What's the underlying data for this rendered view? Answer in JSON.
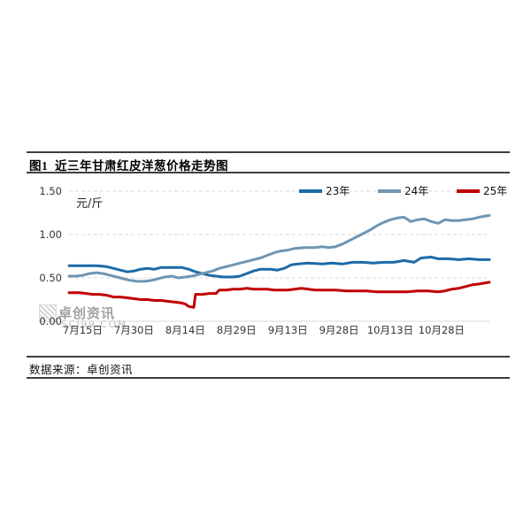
{
  "figure": {
    "title": "图1  近三年甘肃红皮洋葱价格走势图",
    "source_note": "数据来源：卓创资讯",
    "watermark": {
      "name": "卓创资讯",
      "domain": "SCI99.COM"
    }
  },
  "chart_data": {
    "type": "line",
    "title": "近三年甘肃红皮洋葱价格走势图",
    "xlabel": "",
    "ylabel": "元/斤",
    "ylim": [
      0,
      1.5
    ],
    "grid": "horizontal-dashed",
    "legend_position": "top-right",
    "x_day_domain": [
      0,
      123
    ],
    "y_ticks": [
      {
        "label": "0.00",
        "value": 0
      },
      {
        "label": "0.50",
        "value": 0.5
      },
      {
        "label": "1.00",
        "value": 1.0
      },
      {
        "label": "1.50",
        "value": 1.5
      }
    ],
    "x_ticks": [
      {
        "label": "7月15日",
        "day": 4
      },
      {
        "label": "7月30日",
        "day": 19
      },
      {
        "label": "8月14日",
        "day": 34
      },
      {
        "label": "8月29日",
        "day": 49
      },
      {
        "label": "9月13日",
        "day": 64
      },
      {
        "label": "9月28日",
        "day": 79
      },
      {
        "label": "10月13日",
        "day": 94
      },
      {
        "label": "10月28日",
        "day": 109
      }
    ],
    "series": [
      {
        "name": "23年",
        "color": "#1b6ba8",
        "points": [
          [
            0,
            0.64
          ],
          [
            4,
            0.64
          ],
          [
            8,
            0.64
          ],
          [
            11,
            0.63
          ],
          [
            13,
            0.61
          ],
          [
            15,
            0.59
          ],
          [
            17,
            0.57
          ],
          [
            19,
            0.58
          ],
          [
            21,
            0.6
          ],
          [
            23,
            0.61
          ],
          [
            25,
            0.6
          ],
          [
            27,
            0.62
          ],
          [
            30,
            0.62
          ],
          [
            33,
            0.62
          ],
          [
            35,
            0.6
          ],
          [
            37,
            0.57
          ],
          [
            39,
            0.55
          ],
          [
            41,
            0.53
          ],
          [
            43,
            0.52
          ],
          [
            45,
            0.51
          ],
          [
            48,
            0.51
          ],
          [
            50,
            0.52
          ],
          [
            52,
            0.55
          ],
          [
            54,
            0.58
          ],
          [
            56,
            0.6
          ],
          [
            59,
            0.6
          ],
          [
            61,
            0.59
          ],
          [
            63,
            0.61
          ],
          [
            65,
            0.65
          ],
          [
            67,
            0.66
          ],
          [
            70,
            0.67
          ],
          [
            74,
            0.66
          ],
          [
            77,
            0.67
          ],
          [
            80,
            0.66
          ],
          [
            83,
            0.68
          ],
          [
            86,
            0.68
          ],
          [
            89,
            0.67
          ],
          [
            92,
            0.68
          ],
          [
            95,
            0.68
          ],
          [
            98,
            0.7
          ],
          [
            101,
            0.68
          ],
          [
            103,
            0.73
          ],
          [
            106,
            0.74
          ],
          [
            108,
            0.72
          ],
          [
            111,
            0.72
          ],
          [
            114,
            0.71
          ],
          [
            117,
            0.72
          ],
          [
            120,
            0.71
          ],
          [
            123,
            0.71
          ]
        ]
      },
      {
        "name": "24年",
        "color": "#6e96b4",
        "points": [
          [
            0,
            0.52
          ],
          [
            2,
            0.52
          ],
          [
            4,
            0.53
          ],
          [
            6,
            0.55
          ],
          [
            8,
            0.56
          ],
          [
            10,
            0.55
          ],
          [
            12,
            0.53
          ],
          [
            14,
            0.51
          ],
          [
            16,
            0.49
          ],
          [
            18,
            0.47
          ],
          [
            20,
            0.46
          ],
          [
            22,
            0.46
          ],
          [
            24,
            0.47
          ],
          [
            26,
            0.49
          ],
          [
            28,
            0.51
          ],
          [
            30,
            0.52
          ],
          [
            32,
            0.5
          ],
          [
            34,
            0.51
          ],
          [
            36,
            0.52
          ],
          [
            38,
            0.54
          ],
          [
            40,
            0.56
          ],
          [
            42,
            0.58
          ],
          [
            44,
            0.61
          ],
          [
            46,
            0.63
          ],
          [
            48,
            0.65
          ],
          [
            50,
            0.67
          ],
          [
            52,
            0.69
          ],
          [
            54,
            0.71
          ],
          [
            56,
            0.73
          ],
          [
            58,
            0.76
          ],
          [
            60,
            0.79
          ],
          [
            62,
            0.81
          ],
          [
            64,
            0.82
          ],
          [
            66,
            0.84
          ],
          [
            69,
            0.85
          ],
          [
            72,
            0.85
          ],
          [
            74,
            0.86
          ],
          [
            76,
            0.85
          ],
          [
            78,
            0.86
          ],
          [
            80,
            0.89
          ],
          [
            82,
            0.93
          ],
          [
            84,
            0.97
          ],
          [
            86,
            1.01
          ],
          [
            88,
            1.05
          ],
          [
            90,
            1.1
          ],
          [
            92,
            1.14
          ],
          [
            94,
            1.17
          ],
          [
            96,
            1.19
          ],
          [
            98,
            1.2
          ],
          [
            100,
            1.15
          ],
          [
            102,
            1.17
          ],
          [
            104,
            1.18
          ],
          [
            106,
            1.15
          ],
          [
            108,
            1.13
          ],
          [
            110,
            1.17
          ],
          [
            112,
            1.16
          ],
          [
            114,
            1.16
          ],
          [
            116,
            1.17
          ],
          [
            118,
            1.18
          ],
          [
            120,
            1.2
          ],
          [
            123,
            1.22
          ]
        ]
      },
      {
        "name": "25年",
        "color": "#c00000",
        "points": [
          [
            0,
            0.33
          ],
          [
            3,
            0.33
          ],
          [
            5,
            0.32
          ],
          [
            7,
            0.31
          ],
          [
            9,
            0.31
          ],
          [
            11,
            0.3
          ],
          [
            13,
            0.28
          ],
          [
            15,
            0.28
          ],
          [
            17,
            0.27
          ],
          [
            19,
            0.26
          ],
          [
            21,
            0.25
          ],
          [
            23,
            0.25
          ],
          [
            25,
            0.24
          ],
          [
            27,
            0.24
          ],
          [
            29,
            0.23
          ],
          [
            31,
            0.22
          ],
          [
            33,
            0.21
          ],
          [
            34,
            0.2
          ],
          [
            35,
            0.17
          ],
          [
            36.5,
            0.16
          ],
          [
            37,
            0.31
          ],
          [
            39,
            0.31
          ],
          [
            41,
            0.32
          ],
          [
            43,
            0.32
          ],
          [
            44,
            0.36
          ],
          [
            46,
            0.36
          ],
          [
            48,
            0.37
          ],
          [
            50,
            0.37
          ],
          [
            52,
            0.38
          ],
          [
            54,
            0.37
          ],
          [
            56,
            0.37
          ],
          [
            58,
            0.37
          ],
          [
            60,
            0.36
          ],
          [
            62,
            0.36
          ],
          [
            64,
            0.36
          ],
          [
            66,
            0.37
          ],
          [
            68,
            0.38
          ],
          [
            70,
            0.37
          ],
          [
            72,
            0.36
          ],
          [
            75,
            0.36
          ],
          [
            78,
            0.36
          ],
          [
            81,
            0.35
          ],
          [
            84,
            0.35
          ],
          [
            87,
            0.35
          ],
          [
            90,
            0.34
          ],
          [
            93,
            0.34
          ],
          [
            96,
            0.34
          ],
          [
            99,
            0.34
          ],
          [
            102,
            0.35
          ],
          [
            105,
            0.35
          ],
          [
            108,
            0.34
          ],
          [
            110,
            0.35
          ],
          [
            112,
            0.37
          ],
          [
            114,
            0.38
          ],
          [
            116,
            0.4
          ],
          [
            118,
            0.42
          ],
          [
            120,
            0.43
          ],
          [
            123,
            0.45
          ]
        ]
      }
    ]
  }
}
